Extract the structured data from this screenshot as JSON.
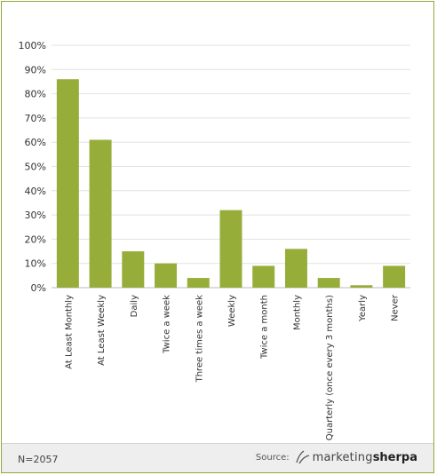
{
  "chart_data": {
    "type": "bar",
    "title": "",
    "xlabel": "",
    "ylabel": "",
    "ylim": [
      0,
      100
    ],
    "yticks": [
      "0%",
      "10%",
      "20%",
      "30%",
      "40%",
      "50%",
      "60%",
      "70%",
      "80%",
      "90%",
      "100%"
    ],
    "grid": true,
    "bar_color": "#97ad3a",
    "categories": [
      "At Least Monthly",
      "At Least Weekly",
      "Daily",
      "Twice a week",
      "Three times a week",
      "Weekly",
      "Twice a month",
      "Monthly",
      "Quarterly (once every 3 months)",
      "Yearly",
      "Never"
    ],
    "values": [
      86,
      61,
      15,
      10,
      4,
      32,
      9,
      16,
      4,
      1,
      9
    ]
  },
  "footer": {
    "n_label": "N=2057",
    "source_label": "Source:",
    "logo_part1": "marketing",
    "logo_part2": "sherpa"
  }
}
